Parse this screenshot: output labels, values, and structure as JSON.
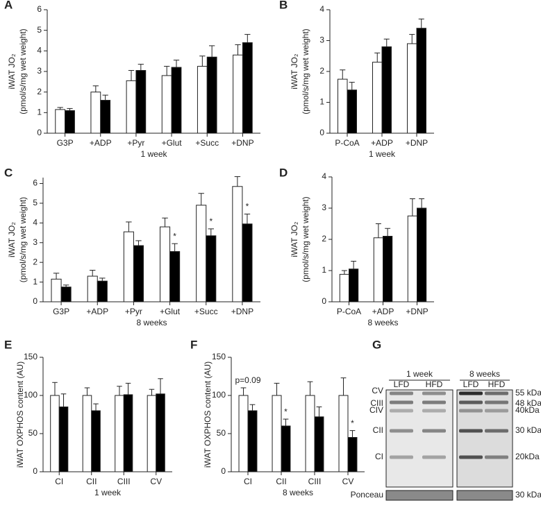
{
  "chart_data": [
    {
      "type": "bar",
      "panel": "A",
      "ylabel": [
        "iWAT JO₂",
        "(pmol/s/mg wet weight)"
      ],
      "xlabel": "1 week",
      "categories": [
        "G3P",
        "+ADP",
        "+Pyr",
        "+Glut",
        "+Succ",
        "+DNP"
      ],
      "series": [
        {
          "color": "#ffffff",
          "values": [
            1.15,
            2.0,
            2.55,
            2.8,
            3.25,
            3.8
          ],
          "errors": [
            0.1,
            0.3,
            0.5,
            0.45,
            0.5,
            0.5
          ]
        },
        {
          "color": "#000000",
          "values": [
            1.1,
            1.6,
            3.05,
            3.2,
            3.7,
            4.4
          ],
          "errors": [
            0.1,
            0.25,
            0.3,
            0.35,
            0.55,
            0.4
          ]
        }
      ],
      "ylim": [
        0,
        6
      ],
      "yticks": [
        0,
        1,
        2,
        3,
        4,
        5,
        6
      ]
    },
    {
      "type": "bar",
      "panel": "B",
      "ylabel": [
        "iWAT JO₂",
        "(pmol/s/mg wet weight)"
      ],
      "xlabel": "1 week",
      "categories": [
        "P-CoA",
        "+ADP",
        "+DNP"
      ],
      "series": [
        {
          "color": "#ffffff",
          "values": [
            1.75,
            2.3,
            2.9
          ],
          "errors": [
            0.3,
            0.3,
            0.3
          ]
        },
        {
          "color": "#000000",
          "values": [
            1.4,
            2.8,
            3.4
          ],
          "errors": [
            0.25,
            0.25,
            0.3
          ]
        }
      ],
      "ylim": [
        0,
        4
      ],
      "yticks": [
        0,
        1,
        2,
        3,
        4
      ]
    },
    {
      "type": "bar",
      "panel": "C",
      "ylabel": [
        "iWAT JO₂",
        "(pmol/s/mg wet weight)"
      ],
      "xlabel": "8 weeks",
      "categories": [
        "G3P",
        "+ADP",
        "+Pyr",
        "+Glut",
        "+Succ",
        "+DNP"
      ],
      "series": [
        {
          "color": "#ffffff",
          "values": [
            1.15,
            1.3,
            3.55,
            3.8,
            4.9,
            5.85
          ],
          "errors": [
            0.3,
            0.3,
            0.5,
            0.45,
            0.6,
            0.5
          ]
        },
        {
          "color": "#000000",
          "values": [
            0.75,
            1.05,
            2.85,
            2.55,
            3.35,
            3.95
          ],
          "errors": [
            0.1,
            0.15,
            0.25,
            0.4,
            0.35,
            0.5
          ]
        }
      ],
      "annotations": [
        {
          "text": "*",
          "category": "+Glut",
          "series": 1
        },
        {
          "text": "*",
          "category": "+Succ",
          "series": 1
        },
        {
          "text": "*",
          "category": "+DNP",
          "series": 1
        }
      ],
      "ylim": [
        0,
        6.3
      ],
      "yticks": [
        0,
        1,
        2,
        3,
        4,
        5,
        6
      ]
    },
    {
      "type": "bar",
      "panel": "D",
      "ylabel": [
        "iWAT JO₂",
        "(pmol/s/mg wet weight)"
      ],
      "xlabel": "8 weeks",
      "categories": [
        "P-CoA",
        "+ADP",
        "+DNP"
      ],
      "series": [
        {
          "color": "#ffffff",
          "values": [
            0.88,
            2.05,
            2.75
          ],
          "errors": [
            0.12,
            0.45,
            0.55
          ]
        },
        {
          "color": "#000000",
          "values": [
            1.05,
            2.1,
            3.0
          ],
          "errors": [
            0.25,
            0.25,
            0.3
          ]
        }
      ],
      "ylim": [
        0,
        4
      ],
      "yticks": [
        0,
        1,
        2,
        3,
        4
      ]
    },
    {
      "type": "bar",
      "panel": "E",
      "ylabel": [
        "iWAT OXPHOS content (AU)"
      ],
      "xlabel": "1 week",
      "categories": [
        "CI",
        "CII",
        "CIII",
        "CV"
      ],
      "series": [
        {
          "color": "#ffffff",
          "values": [
            100,
            100,
            100,
            100
          ],
          "errors": [
            17,
            10,
            12,
            8
          ]
        },
        {
          "color": "#000000",
          "values": [
            85,
            80,
            101,
            102
          ],
          "errors": [
            17,
            9,
            15,
            20
          ]
        }
      ],
      "ylim": [
        0,
        150
      ],
      "yticks": [
        0,
        50,
        100,
        150
      ]
    },
    {
      "type": "bar",
      "panel": "F",
      "ylabel": [
        "iWAT OXPHOS content (AU)"
      ],
      "xlabel": "8 weeks",
      "categories": [
        "CI",
        "CII",
        "CIII",
        "CV"
      ],
      "series": [
        {
          "color": "#ffffff",
          "values": [
            100,
            100,
            100,
            100
          ],
          "errors": [
            10,
            16,
            18,
            23
          ]
        },
        {
          "color": "#000000",
          "values": [
            80,
            60,
            72,
            45
          ],
          "errors": [
            8,
            9,
            13,
            9
          ]
        }
      ],
      "annotations": [
        {
          "text": "p=0.09",
          "category": "CI"
        },
        {
          "text": "*",
          "category": "CII",
          "series": 1
        },
        {
          "text": "*",
          "category": "CV",
          "series": 1
        }
      ],
      "ylim": [
        0,
        150
      ],
      "yticks": [
        0,
        50,
        100,
        150
      ]
    }
  ],
  "blot": {
    "panel": "G",
    "groups": [
      "1 week",
      "8 weeks"
    ],
    "lanes": [
      "LFD",
      "HFD",
      "LFD",
      "HFD"
    ],
    "complexes": [
      "CV",
      "CIII",
      "CIV",
      "CII",
      "CI"
    ],
    "markers": [
      "55 kDa",
      "48 kDa",
      "40kDa",
      "30 kDa",
      "20kDa"
    ],
    "loading": "Ponceau",
    "loading_marker": "30 kDa"
  }
}
